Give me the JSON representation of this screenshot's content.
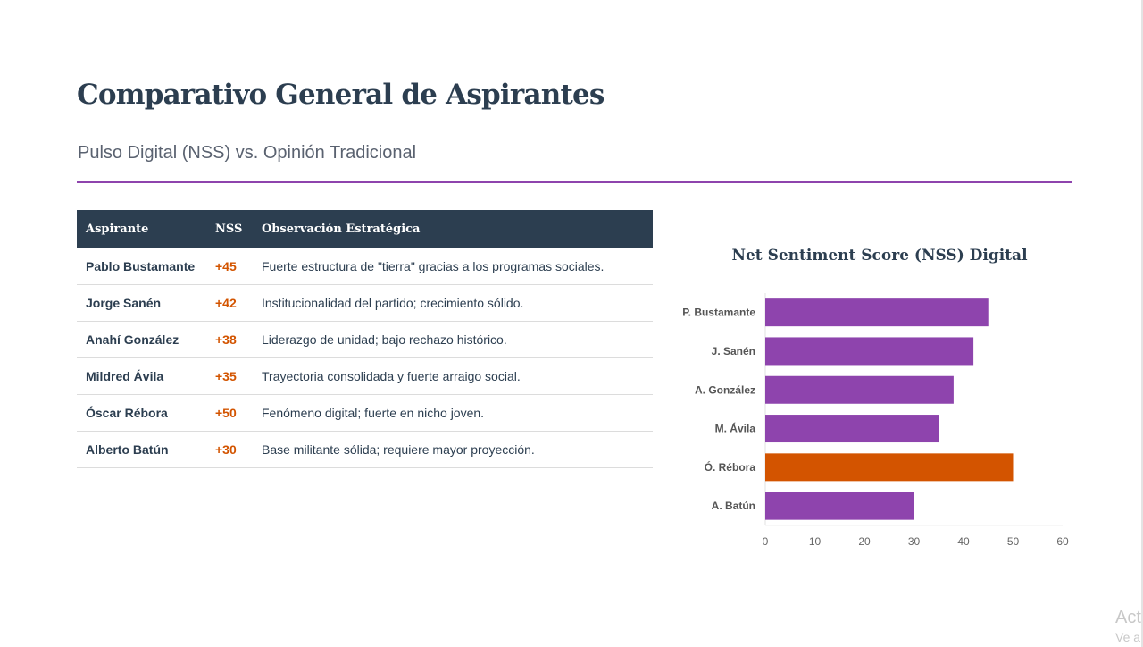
{
  "header": {
    "title": "Comparativo General de Aspirantes",
    "subtitle": "Pulso Digital (NSS) vs. Opinión Tradicional"
  },
  "table": {
    "headers": [
      "Aspirante",
      "NSS",
      "Observación Estratégica"
    ],
    "rows": [
      {
        "name": "Pablo Bustamante",
        "nss": "+45",
        "obs": "Fuerte estructura de \"tierra\" gracias a los programas sociales."
      },
      {
        "name": "Jorge Sanén",
        "nss": "+42",
        "obs": "Institucionalidad del partido; crecimiento sólido."
      },
      {
        "name": "Anahí González",
        "nss": "+38",
        "obs": "Liderazgo de unidad; bajo rechazo histórico."
      },
      {
        "name": "Mildred Ávila",
        "nss": "+35",
        "obs": "Trayectoria consolidada y fuerte arraigo social."
      },
      {
        "name": "Óscar Rébora",
        "nss": "+50",
        "obs": "Fenómeno digital; fuerte en nicho joven."
      },
      {
        "name": "Alberto Batún",
        "nss": "+30",
        "obs": "Base militante sólida; requiere mayor proyección."
      }
    ]
  },
  "chart_data": {
    "type": "bar",
    "orientation": "horizontal",
    "title": "Net Sentiment Score (NSS) Digital",
    "categories": [
      "P. Bustamante",
      "J. Sanén",
      "A. González",
      "M. Ávila",
      "Ó. Rébora",
      "A. Batún"
    ],
    "values": [
      45,
      42,
      38,
      35,
      50,
      30
    ],
    "colors": [
      "#8e44ad",
      "#8e44ad",
      "#8e44ad",
      "#8e44ad",
      "#d35400",
      "#8e44ad"
    ],
    "xlim": [
      0,
      60
    ],
    "xticks": [
      0,
      10,
      20,
      30,
      40,
      50,
      60
    ],
    "grid": false
  },
  "watermark": {
    "line1": "Act",
    "line2": "Ve a"
  }
}
